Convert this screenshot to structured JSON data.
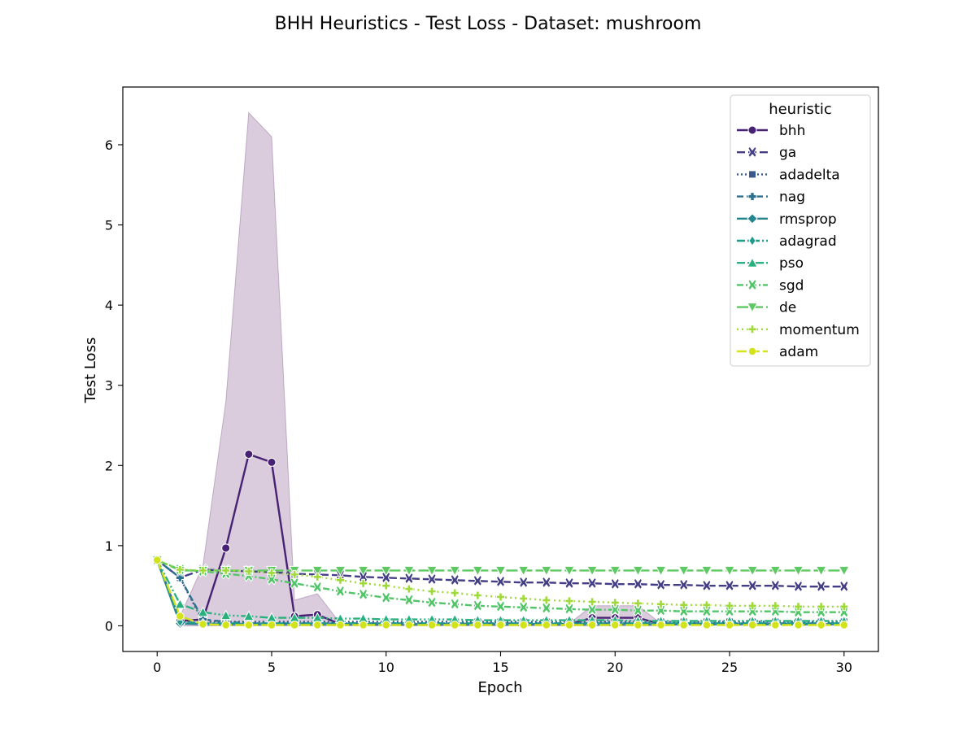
{
  "chart_data": {
    "type": "line",
    "title": "BHH Heuristics - Test Loss - Dataset: mushroom",
    "xlabel": "Epoch",
    "ylabel": "Test Loss",
    "xlim": [
      -1.5,
      31.5
    ],
    "ylim": [
      -0.32,
      6.72
    ],
    "xticks": [
      0,
      5,
      10,
      15,
      20,
      25,
      30
    ],
    "yticks": [
      0,
      1,
      2,
      3,
      4,
      5,
      6
    ],
    "grid": false,
    "legend": {
      "title": "heuristic",
      "placement": "top-right"
    },
    "band": {
      "series": "bhh",
      "color": "#440154",
      "x": [
        0,
        1,
        2,
        3,
        4,
        5,
        6,
        7,
        8,
        18,
        19,
        20,
        21,
        22
      ],
      "upper": [
        0.82,
        0.12,
        0.75,
        2.8,
        6.4,
        6.1,
        0.32,
        0.4,
        0.03,
        0.03,
        0.25,
        0.25,
        0.25,
        0.03
      ],
      "lower": [
        0.8,
        0.0,
        0.0,
        0.0,
        0.0,
        0.0,
        0.0,
        0.0,
        0.0,
        0.0,
        0.0,
        0.0,
        0.0,
        0.0
      ]
    },
    "series": [
      {
        "name": "bhh",
        "color": "#482173",
        "dash": "",
        "marker": "circle",
        "values": [
          0.82,
          0.06,
          0.08,
          0.97,
          2.14,
          2.04,
          0.12,
          0.14,
          0.02,
          0.02,
          0.02,
          0.02,
          0.02,
          0.02,
          0.02,
          0.02,
          0.02,
          0.02,
          0.02,
          0.1,
          0.1,
          0.1,
          0.02,
          0.02,
          0.02,
          0.02,
          0.02,
          0.02,
          0.02,
          0.02,
          0.02
        ]
      },
      {
        "name": "ga",
        "color": "#433e85",
        "dash": "10,4",
        "marker": "x",
        "values": [
          0.82,
          0.6,
          0.7,
          0.69,
          0.68,
          0.67,
          0.65,
          0.64,
          0.63,
          0.61,
          0.6,
          0.59,
          0.58,
          0.57,
          0.56,
          0.55,
          0.54,
          0.54,
          0.53,
          0.53,
          0.52,
          0.52,
          0.51,
          0.51,
          0.5,
          0.5,
          0.5,
          0.5,
          0.49,
          0.49,
          0.49
        ]
      },
      {
        "name": "adadelta",
        "color": "#38598c",
        "dash": "2,3",
        "marker": "square",
        "values": [
          0.82,
          0.6,
          0.05,
          0.05,
          0.05,
          0.05,
          0.05,
          0.05,
          0.05,
          0.05,
          0.05,
          0.05,
          0.05,
          0.05,
          0.05,
          0.05,
          0.05,
          0.05,
          0.05,
          0.05,
          0.05,
          0.05,
          0.05,
          0.05,
          0.05,
          0.05,
          0.05,
          0.05,
          0.05,
          0.05,
          0.05
        ]
      },
      {
        "name": "nag",
        "color": "#2d708e",
        "dash": "8,4",
        "marker": "plus",
        "values": [
          0.82,
          0.6,
          0.08,
          0.05,
          0.03,
          0.03,
          0.03,
          0.03,
          0.03,
          0.03,
          0.03,
          0.03,
          0.03,
          0.03,
          0.03,
          0.03,
          0.03,
          0.03,
          0.03,
          0.03,
          0.03,
          0.03,
          0.03,
          0.03,
          0.03,
          0.03,
          0.03,
          0.03,
          0.03,
          0.03,
          0.03
        ]
      },
      {
        "name": "rmsprop",
        "color": "#25858e",
        "dash": "",
        "marker": "diamond",
        "values": [
          0.82,
          0.03,
          0.02,
          0.02,
          0.02,
          0.02,
          0.02,
          0.02,
          0.02,
          0.02,
          0.02,
          0.02,
          0.02,
          0.02,
          0.02,
          0.02,
          0.02,
          0.02,
          0.02,
          0.02,
          0.02,
          0.02,
          0.02,
          0.02,
          0.02,
          0.02,
          0.02,
          0.02,
          0.02,
          0.02,
          0.02
        ]
      },
      {
        "name": "adagrad",
        "color": "#1e9b8a",
        "dash": "10,3,2,3",
        "marker": "thin-diamond",
        "values": [
          0.82,
          0.05,
          0.03,
          0.03,
          0.03,
          0.03,
          0.03,
          0.03,
          0.03,
          0.03,
          0.03,
          0.03,
          0.03,
          0.03,
          0.03,
          0.03,
          0.03,
          0.03,
          0.03,
          0.03,
          0.03,
          0.03,
          0.03,
          0.03,
          0.03,
          0.03,
          0.03,
          0.03,
          0.03,
          0.03,
          0.03
        ]
      },
      {
        "name": "pso",
        "color": "#2ab07f",
        "dash": "10,3,2,3,2,3",
        "marker": "triangle-up",
        "values": [
          0.82,
          0.27,
          0.17,
          0.13,
          0.12,
          0.1,
          0.1,
          0.1,
          0.09,
          0.09,
          0.08,
          0.08,
          0.08,
          0.08,
          0.07,
          0.07,
          0.07,
          0.07,
          0.07,
          0.07,
          0.07,
          0.06,
          0.06,
          0.06,
          0.06,
          0.06,
          0.06,
          0.06,
          0.06,
          0.06,
          0.06
        ]
      },
      {
        "name": "sgd",
        "color": "#52c569",
        "dash": "8,3,2,3",
        "marker": "x-filled",
        "values": [
          0.82,
          0.7,
          0.68,
          0.65,
          0.62,
          0.58,
          0.53,
          0.48,
          0.43,
          0.39,
          0.35,
          0.32,
          0.29,
          0.27,
          0.25,
          0.24,
          0.23,
          0.22,
          0.21,
          0.2,
          0.2,
          0.19,
          0.19,
          0.18,
          0.18,
          0.18,
          0.18,
          0.18,
          0.17,
          0.17,
          0.17
        ]
      },
      {
        "name": "de",
        "color": "#5ec962",
        "dash": "14,4",
        "marker": "triangle-down",
        "values": [
          0.82,
          0.69,
          0.69,
          0.69,
          0.69,
          0.69,
          0.69,
          0.69,
          0.69,
          0.69,
          0.69,
          0.69,
          0.69,
          0.69,
          0.69,
          0.69,
          0.69,
          0.69,
          0.69,
          0.69,
          0.69,
          0.69,
          0.69,
          0.69,
          0.69,
          0.69,
          0.69,
          0.69,
          0.69,
          0.69,
          0.69
        ]
      },
      {
        "name": "momentum",
        "color": "#9fda3a",
        "dash": "2,4",
        "marker": "plus-filled",
        "values": [
          0.82,
          0.7,
          0.69,
          0.69,
          0.68,
          0.66,
          0.64,
          0.61,
          0.57,
          0.53,
          0.5,
          0.46,
          0.43,
          0.41,
          0.38,
          0.36,
          0.34,
          0.32,
          0.31,
          0.3,
          0.29,
          0.28,
          0.27,
          0.26,
          0.26,
          0.25,
          0.25,
          0.25,
          0.24,
          0.24,
          0.24
        ]
      },
      {
        "name": "adam",
        "color": "#d2e21b",
        "dash": "12,4",
        "marker": "octagon",
        "values": [
          0.82,
          0.12,
          0.02,
          0.01,
          0.01,
          0.01,
          0.01,
          0.01,
          0.01,
          0.01,
          0.01,
          0.01,
          0.01,
          0.01,
          0.01,
          0.01,
          0.01,
          0.01,
          0.01,
          0.01,
          0.01,
          0.01,
          0.01,
          0.01,
          0.01,
          0.01,
          0.01,
          0.01,
          0.01,
          0.01,
          0.01
        ]
      }
    ]
  }
}
